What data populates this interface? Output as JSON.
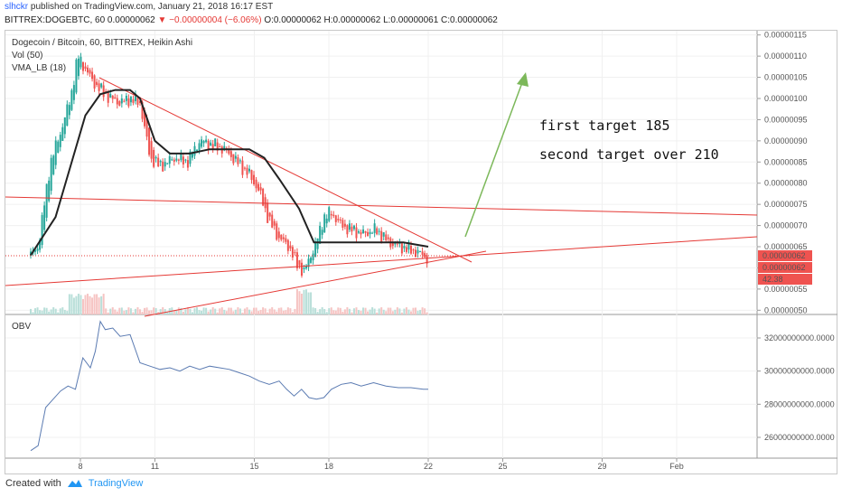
{
  "header": {
    "author": "slhckr",
    "published": "published on TradingView.com, January 21, 2018 16:17 EST",
    "symbol_line": "BITTREX:DOGEBTC, 60  0.00000062",
    "change": "−0.00000004 (−6.06%)",
    "ohlc": "O:0.00000062  H:0.00000062  L:0.00000061  C:0.00000062"
  },
  "legend": {
    "title": "Dogecoin / Bitcoin, 60, BITTREX, Heikin Ashi",
    "vol": "Vol (50)",
    "vma": "VMA_LB (18)",
    "obv": "OBV"
  },
  "annotations": {
    "target1": "first target 185",
    "target2": "second target over 210"
  },
  "footer": {
    "created_with": "Created with",
    "brand": "TradingView"
  },
  "colors": {
    "up": "#26a69a",
    "down": "#ef5350",
    "trendline": "#e53935",
    "vma": "#222222",
    "obv": "#5b7bb2",
    "arrow": "#7cb85a",
    "price_label_bg": "#ef5350"
  },
  "chart_data": [
    {
      "type": "candlestick",
      "title": "Dogecoin / Bitcoin, 60, BITTREX, Heikin Ashi",
      "y_ticks": [
        "0.00000050",
        "0.00000055",
        "0.00000060",
        "0.00000065",
        "0.00000070",
        "0.00000075",
        "0.00000080",
        "0.00000085",
        "0.00000090",
        "0.00000095",
        "0.00000100",
        "0.00000105",
        "0.00000110",
        "0.00000115"
      ],
      "ylim": [
        4.9e-07,
        1.16e-06
      ],
      "x_ticks": [
        "8",
        "11",
        "15",
        "18",
        "22",
        "25",
        "29",
        "Feb"
      ],
      "x_tick_days": [
        8,
        11,
        15,
        18,
        22,
        25,
        29,
        32
      ],
      "price_labels": [
        "0.00000062",
        "0.00000062",
        "42.38"
      ],
      "price_path": {
        "days": [
          6.0,
          6.3,
          6.8,
          7.2,
          7.6,
          7.9,
          8.2,
          8.5,
          8.8,
          9.2,
          9.6,
          10.0,
          10.4,
          10.8,
          11.2,
          11.8,
          12.3,
          12.8,
          13.3,
          13.8,
          14.3,
          14.8,
          15.2,
          15.6,
          16.0,
          16.4,
          16.7,
          17.0,
          17.2,
          17.5,
          17.8,
          18.1,
          18.5,
          18.9,
          19.4,
          19.9,
          20.4,
          20.9,
          21.4,
          21.8,
          22.0
        ],
        "close": [
          6.3e-07,
          6.5e-07,
          8.5e-07,
          9.2e-07,
          1e-06,
          1.1e-06,
          1.07e-06,
          1.04e-06,
          1.02e-06,
          1e-06,
          9.9e-07,
          1e-06,
          9.9e-07,
          8.6e-07,
          8.4e-07,
          8.6e-07,
          8.5e-07,
          9e-07,
          8.9e-07,
          8.8e-07,
          8.5e-07,
          8.2e-07,
          7.8e-07,
          7.1e-07,
          6.7e-07,
          6.5e-07,
          6.1e-07,
          5.9e-07,
          6.2e-07,
          6.6e-07,
          7.2e-07,
          7.3e-07,
          7e-07,
          6.9e-07,
          6.8e-07,
          6.9e-07,
          6.6e-07,
          6.5e-07,
          6.4e-07,
          6.3e-07,
          6.2e-07
        ]
      },
      "vma": {
        "days": [
          6.0,
          7.0,
          7.6,
          8.2,
          8.8,
          9.4,
          10.0,
          10.4,
          11.0,
          11.6,
          12.4,
          13.2,
          14.0,
          14.8,
          15.4,
          16.0,
          16.8,
          17.4,
          18.2,
          19.0,
          20.0,
          21.0,
          22.0
        ],
        "values": [
          6.3e-07,
          7.2e-07,
          8.4e-07,
          9.6e-07,
          1.01e-06,
          1.02e-06,
          1.02e-06,
          1e-06,
          9e-07,
          8.7e-07,
          8.7e-07,
          8.8e-07,
          8.8e-07,
          8.8e-07,
          8.6e-07,
          8.1e-07,
          7.4e-07,
          6.6e-07,
          6.6e-07,
          6.6e-07,
          6.6e-07,
          6.6e-07,
          6.5e-07
        ]
      }
    },
    {
      "type": "line",
      "title": "OBV",
      "y_ticks": [
        "26000000000.0000",
        "28000000000.0000",
        "30000000000.0000",
        "32000000000.0000"
      ],
      "ylim": [
        24800000000,
        33200000000
      ],
      "days": [
        6.0,
        6.3,
        6.6,
        6.9,
        7.2,
        7.5,
        7.8,
        8.1,
        8.4,
        8.6,
        8.8,
        9.0,
        9.3,
        9.6,
        10.0,
        10.4,
        10.8,
        11.2,
        11.6,
        12.0,
        12.4,
        12.8,
        13.2,
        13.6,
        14.0,
        14.4,
        14.8,
        15.2,
        15.6,
        16.0,
        16.3,
        16.6,
        16.9,
        17.2,
        17.5,
        17.8,
        18.1,
        18.5,
        18.9,
        19.3,
        19.8,
        20.3,
        20.8,
        21.3,
        21.8,
        22.0
      ],
      "values": [
        25200000000,
        25500000000,
        27800000000,
        28300000000,
        28800000000,
        29100000000,
        28900000000,
        30800000000,
        30200000000,
        31200000000,
        33000000000,
        32500000000,
        32600000000,
        32100000000,
        32200000000,
        30500000000,
        30300000000,
        30100000000,
        30200000000,
        30000000000,
        30300000000,
        30100000000,
        30300000000,
        30200000000,
        30100000000,
        29900000000,
        29700000000,
        29400000000,
        29200000000,
        29400000000,
        28900000000,
        28500000000,
        28900000000,
        28400000000,
        28300000000,
        28400000000,
        28900000000,
        29200000000,
        29300000000,
        29100000000,
        29300000000,
        29100000000,
        29000000000,
        29000000000,
        28900000000,
        28900000000
      ]
    }
  ]
}
